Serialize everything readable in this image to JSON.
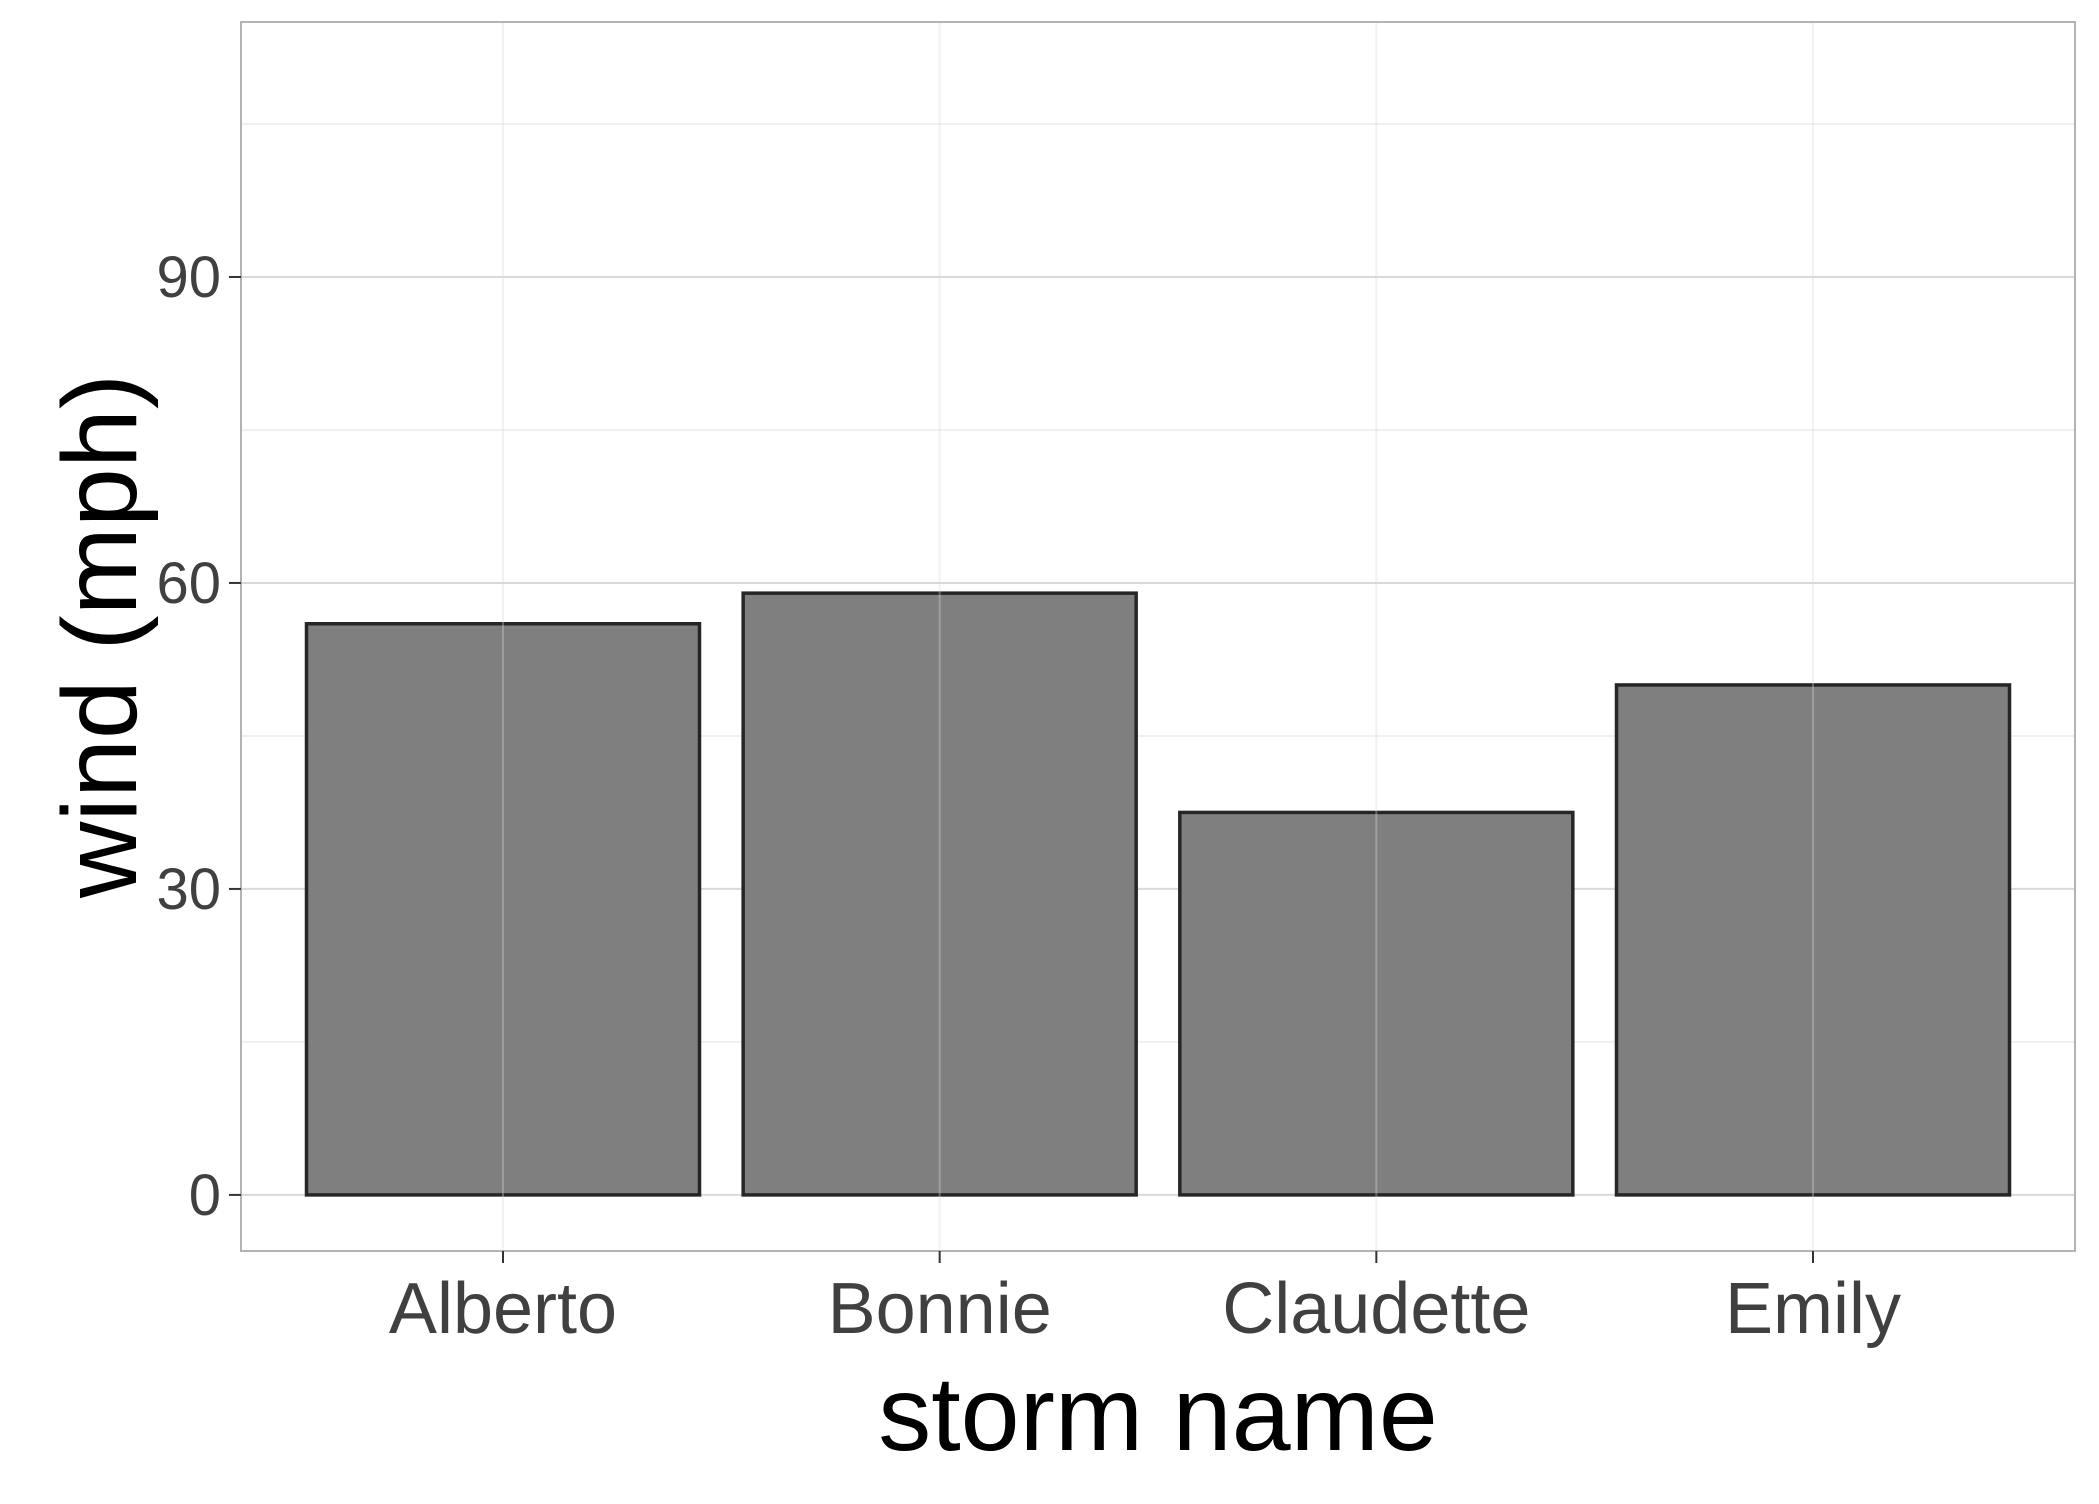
{
  "chart_data": {
    "type": "bar",
    "title": "",
    "xlabel": "storm name",
    "ylabel": "wind (mph)",
    "categories": [
      "Alberto",
      "Bonnie",
      "Claudette",
      "Emily"
    ],
    "values": [
      56,
      59,
      37.5,
      50
    ],
    "ylim": [
      -5.5,
      115
    ],
    "yticks": [
      0,
      30,
      60,
      90
    ],
    "ytick_labels": [
      "0",
      "30",
      "60",
      "90"
    ],
    "grid": true,
    "legend": "none",
    "colors": {
      "bar_fill": "#7f7f7f",
      "bar_stroke": "#262626",
      "grid_major": "#d9d9d9",
      "grid_minor": "#ececec",
      "panel_border": "#b3b3b3"
    }
  }
}
